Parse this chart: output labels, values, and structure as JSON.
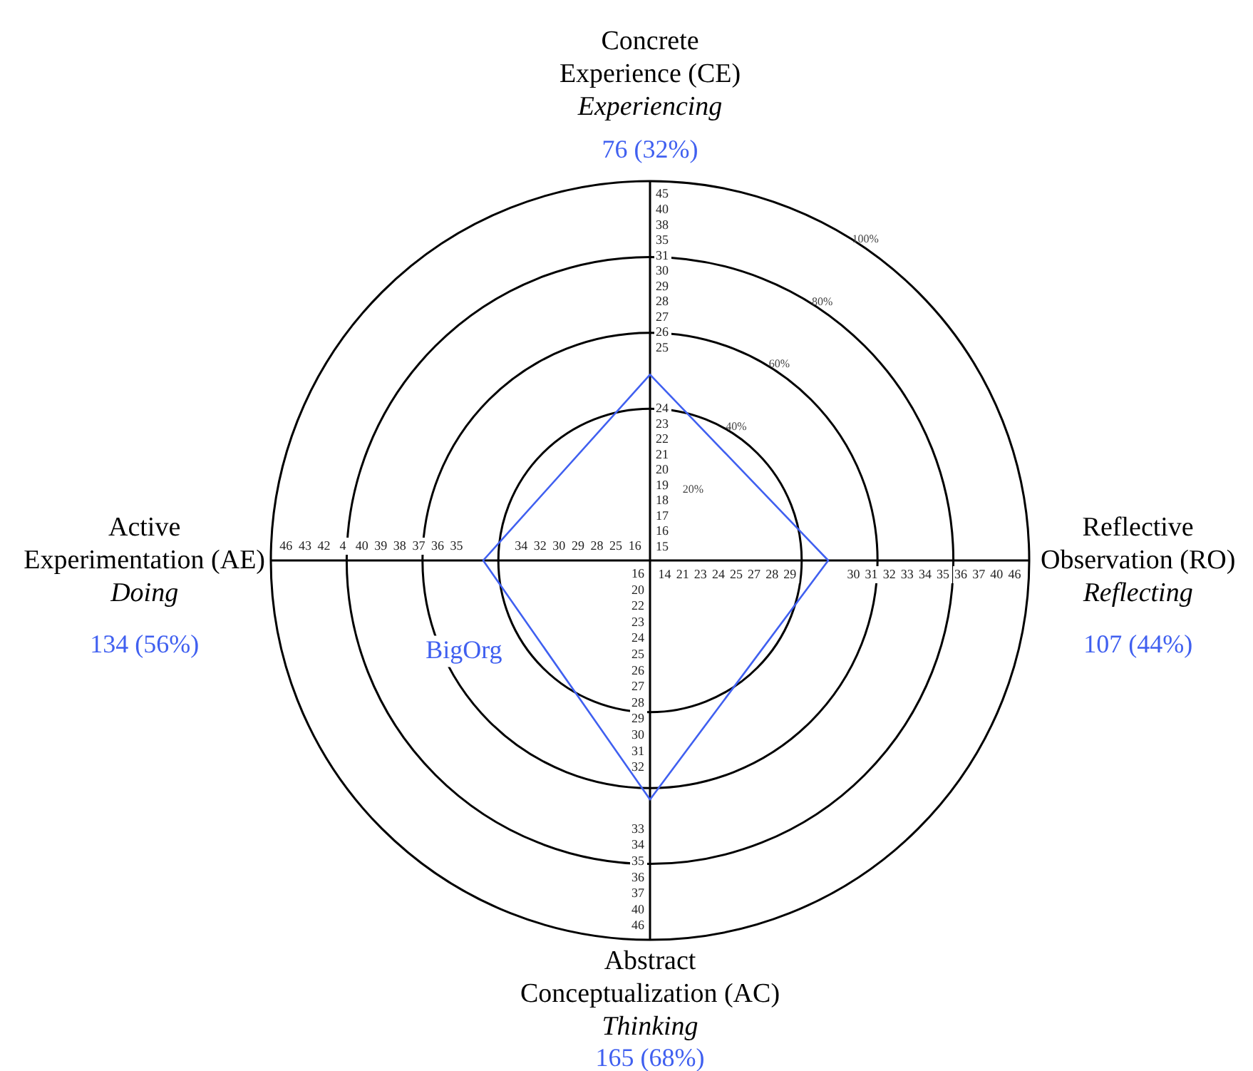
{
  "chart_data": {
    "type": "radar",
    "categories": [
      "Concrete\nExperience (CE)\nExperiencing",
      "Reflective\nObservation (RO)\nReflecting",
      "Abstract\nConceptualization (AC)\nThinking",
      "Active\nExperimentation (AE)\nDoing"
    ],
    "series": [
      {
        "name": "BigOrg",
        "color": "#4060f0",
        "values": [
          49,
          47,
          63,
          44
        ]
      }
    ],
    "ylim": [
      0,
      100
    ],
    "yticks": [
      {
        "value": 20,
        "label": "20%"
      },
      {
        "value": 40,
        "label": "40%"
      },
      {
        "value": 60,
        "label": "60%"
      },
      {
        "value": 80,
        "label": "80%"
      },
      {
        "value": 100,
        "label": "100%"
      }
    ],
    "grid": true,
    "legend": false,
    "marker": "none",
    "line_style": "solid",
    "annotations": [
      {
        "text": "76 (32%)",
        "x": "Concrete\nExperience (CE)\nExperiencing"
      },
      {
        "text": "107 (44%)",
        "x": "Reflective\nObservation (RO)\nReflecting"
      },
      {
        "text": "165 (68%)",
        "x": "Abstract\nConceptualization (AC)\nThinking"
      },
      {
        "text": "134 (56%)",
        "x": "Active\nExperimentation (AE)\nDoing"
      },
      {
        "text": "15",
        "x": "Concrete\nExperience (CE)\nExperiencing"
      },
      {
        "text": "16",
        "x": "Concrete\nExperience (CE)\nExperiencing"
      },
      {
        "text": "17",
        "x": "Concrete\nExperience (CE)\nExperiencing"
      },
      {
        "text": "18",
        "x": "Concrete\nExperience (CE)\nExperiencing"
      },
      {
        "text": "19",
        "x": "Concrete\nExperience (CE)\nExperiencing"
      },
      {
        "text": "20",
        "x": "Concrete\nExperience (CE)\nExperiencing"
      },
      {
        "text": "21",
        "x": "Concrete\nExperience (CE)\nExperiencing"
      },
      {
        "text": "22",
        "x": "Concrete\nExperience (CE)\nExperiencing"
      },
      {
        "text": "23",
        "x": "Concrete\nExperience (CE)\nExperiencing"
      },
      {
        "text": "24",
        "x": "Concrete\nExperience (CE)\nExperiencing"
      },
      {
        "text": "25",
        "x": "Concrete\nExperience (CE)\nExperiencing"
      },
      {
        "text": "26",
        "x": "Concrete\nExperience (CE)\nExperiencing"
      },
      {
        "text": "27",
        "x": "Concrete\nExperience (CE)\nExperiencing"
      },
      {
        "text": "28",
        "x": "Concrete\nExperience (CE)\nExperiencing"
      },
      {
        "text": "29",
        "x": "Concrete\nExperience (CE)\nExperiencing"
      },
      {
        "text": "30",
        "x": "Concrete\nExperience (CE)\nExperiencing"
      },
      {
        "text": "31",
        "x": "Concrete\nExperience (CE)\nExperiencing"
      },
      {
        "text": "35",
        "x": "Concrete\nExperience (CE)\nExperiencing"
      },
      {
        "text": "38",
        "x": "Concrete\nExperience (CE)\nExperiencing"
      },
      {
        "text": "40",
        "x": "Concrete\nExperience (CE)\nExperiencing"
      },
      {
        "text": "45",
        "x": "Concrete\nExperience (CE)\nExperiencing"
      },
      {
        "text": "14",
        "x": "Reflective\nObservation (RO)\nReflecting"
      },
      {
        "text": "21",
        "x": "Reflective\nObservation (RO)\nReflecting"
      },
      {
        "text": "23",
        "x": "Reflective\nObservation (RO)\nReflecting"
      },
      {
        "text": "24",
        "x": "Reflective\nObservation (RO)\nReflecting"
      },
      {
        "text": "25",
        "x": "Reflective\nObservation (RO)\nReflecting"
      },
      {
        "text": "27",
        "x": "Reflective\nObservation (RO)\nReflecting"
      },
      {
        "text": "28",
        "x": "Reflective\nObservation (RO)\nReflecting"
      },
      {
        "text": "29",
        "x": "Reflective\nObservation (RO)\nReflecting"
      },
      {
        "text": "30",
        "x": "Reflective\nObservation (RO)\nReflecting"
      },
      {
        "text": "31",
        "x": "Reflective\nObservation (RO)\nReflecting"
      },
      {
        "text": "32",
        "x": "Reflective\nObservation (RO)\nReflecting"
      },
      {
        "text": "33",
        "x": "Reflective\nObservation (RO)\nReflecting"
      },
      {
        "text": "34",
        "x": "Reflective\nObservation (RO)\nReflecting"
      },
      {
        "text": "35",
        "x": "Reflective\nObservation (RO)\nReflecting"
      },
      {
        "text": "36",
        "x": "Reflective\nObservation (RO)\nReflecting"
      },
      {
        "text": "37",
        "x": "Reflective\nObservation (RO)\nReflecting"
      },
      {
        "text": "40",
        "x": "Reflective\nObservation (RO)\nReflecting"
      },
      {
        "text": "46",
        "x": "Reflective\nObservation (RO)\nReflecting"
      },
      {
        "text": "16",
        "x": "Abstract\nConceptualization (AC)\nThinking"
      },
      {
        "text": "20",
        "x": "Abstract\nConceptualization (AC)\nThinking"
      },
      {
        "text": "22",
        "x": "Abstract\nConceptualization (AC)\nThinking"
      },
      {
        "text": "23",
        "x": "Abstract\nConceptualization (AC)\nThinking"
      },
      {
        "text": "24",
        "x": "Abstract\nConceptualization (AC)\nThinking"
      },
      {
        "text": "25",
        "x": "Abstract\nConceptualization (AC)\nThinking"
      },
      {
        "text": "26",
        "x": "Abstract\nConceptualization (AC)\nThinking"
      },
      {
        "text": "27",
        "x": "Abstract\nConceptualization (AC)\nThinking"
      },
      {
        "text": "28",
        "x": "Abstract\nConceptualization (AC)\nThinking"
      },
      {
        "text": "29",
        "x": "Abstract\nConceptualization (AC)\nThinking"
      },
      {
        "text": "30",
        "x": "Abstract\nConceptualization (AC)\nThinking"
      },
      {
        "text": "31",
        "x": "Abstract\nConceptualization (AC)\nThinking"
      },
      {
        "text": "32",
        "x": "Abstract\nConceptualization (AC)\nThinking"
      },
      {
        "text": "33",
        "x": "Abstract\nConceptualization (AC)\nThinking"
      },
      {
        "text": "34",
        "x": "Abstract\nConceptualization (AC)\nThinking"
      },
      {
        "text": "35",
        "x": "Abstract\nConceptualization (AC)\nThinking"
      },
      {
        "text": "36",
        "x": "Abstract\nConceptualization (AC)\nThinking"
      },
      {
        "text": "37",
        "x": "Abstract\nConceptualization (AC)\nThinking"
      },
      {
        "text": "40",
        "x": "Abstract\nConceptualization (AC)\nThinking"
      },
      {
        "text": "46",
        "x": "Abstract\nConceptualization (AC)\nThinking"
      },
      {
        "text": "16",
        "x": "Active\nExperimentation (AE)\nDoing"
      },
      {
        "text": "25",
        "x": "Active\nExperimentation (AE)\nDoing"
      },
      {
        "text": "28",
        "x": "Active\nExperimentation (AE)\nDoing"
      },
      {
        "text": "29",
        "x": "Active\nExperimentation (AE)\nDoing"
      },
      {
        "text": "30",
        "x": "Active\nExperimentation (AE)\nDoing"
      },
      {
        "text": "32",
        "x": "Active\nExperimentation (AE)\nDoing"
      },
      {
        "text": "34",
        "x": "Active\nExperimentation (AE)\nDoing"
      },
      {
        "text": "35",
        "x": "Active\nExperimentation (AE)\nDoing"
      },
      {
        "text": "36",
        "x": "Active\nExperimentation (AE)\nDoing"
      },
      {
        "text": "37",
        "x": "Active\nExperimentation (AE)\nDoing"
      },
      {
        "text": "38",
        "x": "Active\nExperimentation (AE)\nDoing"
      },
      {
        "text": "39",
        "x": "Active\nExperimentation (AE)\nDoing"
      },
      {
        "text": "40",
        "x": "Active\nExperimentation (AE)\nDoing"
      },
      {
        "text": "4",
        "x": "Active\nExperimentation (AE)\nDoing"
      },
      {
        "text": "42",
        "x": "Active\nExperimentation (AE)\nDoing"
      },
      {
        "text": "43",
        "x": "Active\nExperimentation (AE)\nDoing"
      },
      {
        "text": "46",
        "x": "Active\nExperimentation (AE)\nDoing"
      }
    ]
  }
}
